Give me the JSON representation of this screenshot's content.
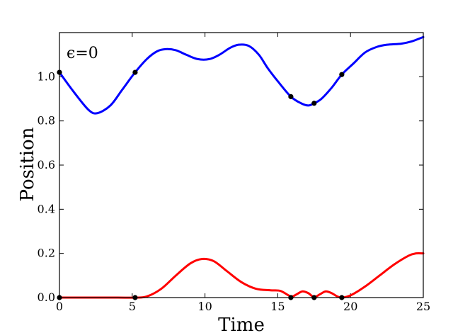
{
  "chart_data": {
    "type": "line",
    "xlabel": "Time",
    "ylabel": "Position",
    "annotation": "ϵ=0",
    "xlim": [
      0,
      25
    ],
    "ylim": [
      0,
      1.2
    ],
    "xticks": [
      "0",
      "5",
      "10",
      "15",
      "20",
      "25"
    ],
    "yticks": [
      "0.0",
      "0.2",
      "0.4",
      "0.6",
      "0.8",
      "1.0"
    ],
    "grid": false,
    "series": [
      {
        "color": "#0000ff",
        "x": [
          0,
          1,
          2,
          2.6,
          3.5,
          4.3,
          5.2,
          6,
          6.7,
          7.3,
          8,
          8.7,
          9.5,
          10.3,
          11,
          11.7,
          12.3,
          13,
          13.7,
          14.3,
          15,
          15.9,
          16.6,
          17.1,
          17.5,
          18,
          18.7,
          19.4,
          20.2,
          21,
          21.8,
          22.5,
          23.5,
          24.2,
          25
        ],
        "values": [
          1.02,
          0.93,
          0.85,
          0.835,
          0.87,
          0.94,
          1.02,
          1.08,
          1.115,
          1.125,
          1.12,
          1.1,
          1.08,
          1.08,
          1.1,
          1.13,
          1.145,
          1.14,
          1.1,
          1.04,
          0.98,
          0.91,
          0.88,
          0.87,
          0.88,
          0.9,
          0.95,
          1.01,
          1.06,
          1.11,
          1.135,
          1.145,
          1.15,
          1.16,
          1.18
        ]
      },
      {
        "color": "#ff0000",
        "x": [
          0,
          2,
          4,
          5.2,
          6,
          7,
          8,
          9,
          9.8,
          10.6,
          11.5,
          12.5,
          13.5,
          14.5,
          15.2,
          15.9,
          16.3,
          16.7,
          17.1,
          17.5,
          17.9,
          18.3,
          18.7,
          19.1,
          19.4,
          20,
          21,
          22,
          23,
          24,
          24.5,
          25
        ],
        "values": [
          0,
          0,
          0,
          0,
          0.005,
          0.04,
          0.1,
          0.155,
          0.175,
          0.165,
          0.12,
          0.07,
          0.04,
          0.033,
          0.03,
          0.005,
          0.015,
          0.028,
          0.02,
          0.002,
          0.015,
          0.028,
          0.02,
          0.005,
          0,
          0.01,
          0.05,
          0.1,
          0.15,
          0.19,
          0.2,
          0.2
        ]
      }
    ],
    "markers": [
      {
        "x": 0,
        "y": 1.02
      },
      {
        "x": 5.2,
        "y": 1.02
      },
      {
        "x": 15.9,
        "y": 0.91
      },
      {
        "x": 17.5,
        "y": 0.88
      },
      {
        "x": 19.4,
        "y": 1.01
      },
      {
        "x": 0,
        "y": 0
      },
      {
        "x": 5.2,
        "y": 0
      },
      {
        "x": 15.9,
        "y": 0
      },
      {
        "x": 17.5,
        "y": 0
      },
      {
        "x": 19.4,
        "y": 0
      }
    ]
  }
}
